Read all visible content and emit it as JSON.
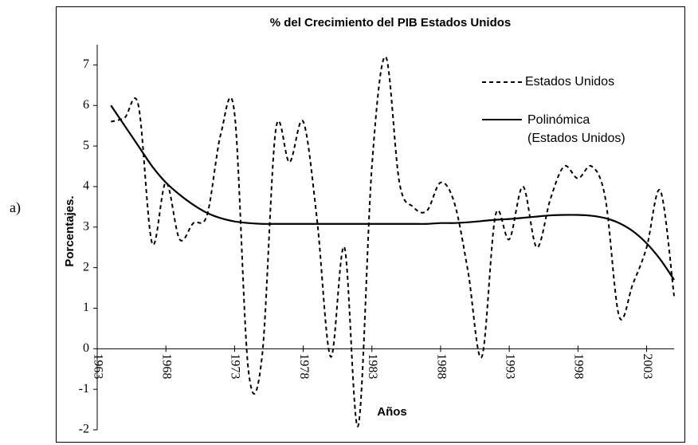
{
  "panel_label": "a)",
  "chart_data": {
    "type": "line",
    "title": "% del Crecimiento del PIB Estados Unidos",
    "x_label": "Años",
    "y_label": "Porcentajes.",
    "x": [
      1964,
      1965,
      1966,
      1967,
      1968,
      1969,
      1970,
      1971,
      1972,
      1973,
      1974,
      1975,
      1976,
      1977,
      1978,
      1979,
      1980,
      1981,
      1982,
      1983,
      1984,
      1985,
      1986,
      1987,
      1988,
      1989,
      1990,
      1991,
      1992,
      1993,
      1994,
      1995,
      1996,
      1997,
      1998,
      1999,
      2000,
      2001,
      2002,
      2003,
      2004,
      2005
    ],
    "series": [
      {
        "name": "Estados Unidos",
        "color": "#000000",
        "dash": true,
        "values": [
          5.6,
          5.7,
          6.0,
          2.6,
          4.1,
          2.7,
          3.1,
          3.3,
          5.3,
          5.8,
          -0.5,
          -0.2,
          5.4,
          4.6,
          5.6,
          3.2,
          -0.2,
          2.5,
          -1.9,
          4.5,
          7.2,
          4.1,
          3.5,
          3.4,
          4.1,
          3.6,
          1.9,
          -0.2,
          3.3,
          2.7,
          4.0,
          2.5,
          3.7,
          4.5,
          4.2,
          4.5,
          3.7,
          0.8,
          1.6,
          2.5,
          3.9,
          1.3
        ]
      },
      {
        "name": "Polinómica\n(Estados Unidos)",
        "color": "#000000",
        "dash": false,
        "values": [
          6.0,
          5.5,
          5.0,
          4.5,
          4.1,
          3.8,
          3.55,
          3.35,
          3.22,
          3.14,
          3.1,
          3.08,
          3.08,
          3.08,
          3.08,
          3.08,
          3.08,
          3.08,
          3.08,
          3.08,
          3.08,
          3.08,
          3.08,
          3.08,
          3.1,
          3.1,
          3.12,
          3.15,
          3.18,
          3.2,
          3.23,
          3.26,
          3.29,
          3.3,
          3.3,
          3.28,
          3.22,
          3.1,
          2.9,
          2.6,
          2.2,
          1.7
        ]
      }
    ],
    "xlim": [
      1963,
      2005
    ],
    "xticks": [
      1963,
      1968,
      1973,
      1978,
      1983,
      1988,
      1993,
      1998,
      2003
    ],
    "ylim": [
      -2,
      7.5
    ],
    "yticks": [
      -2,
      -1,
      0,
      1,
      2,
      3,
      4,
      5,
      6,
      7
    ],
    "grid": false,
    "legend": "upper right"
  }
}
